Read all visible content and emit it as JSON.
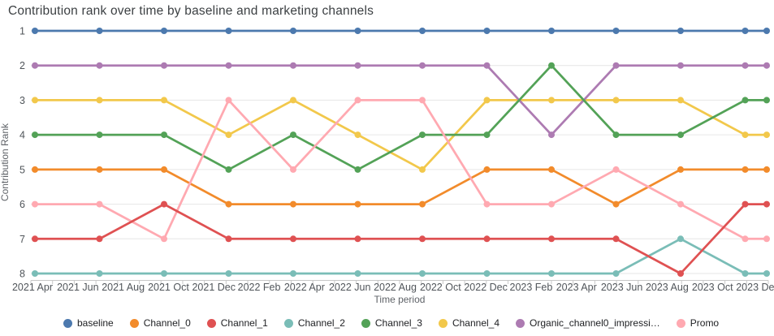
{
  "title": "Contribution rank over time by baseline and marketing channels",
  "axes": {
    "x_title": "Time period",
    "y_title": "Contribution Rank",
    "y_ticks": [
      "1",
      "2",
      "3",
      "4",
      "5",
      "6",
      "7",
      "8"
    ],
    "x_tick_labels": [
      "2021 Apr",
      "2021 Jun",
      "2021 Aug",
      "2021 Oct",
      "2021 Dec",
      "2022 Feb",
      "2022 Apr",
      "2022 Jun",
      "2022 Aug",
      "2022 Oct",
      "2022 Dec",
      "2023 Feb",
      "2023 Apr",
      "2023 Jun",
      "2023 Aug",
      "2023 Oct",
      "2023 Dec"
    ],
    "grid_color": "#e6e6e6",
    "axis_color": "#c8c8c8"
  },
  "chart_data": {
    "type": "line",
    "title": "Contribution rank over time by baseline and marketing channels",
    "xlabel": "Time period",
    "ylabel": "Contribution Rank",
    "y_range": [
      1,
      8
    ],
    "y_inverted": true,
    "grid": "horizontal",
    "legend_position": "bottom",
    "x_span_months": 34,
    "x_months": [
      0,
      3,
      6,
      9,
      12,
      15,
      18,
      21,
      24,
      27,
      30,
      33,
      34
    ],
    "x_tick_labels": [
      "2021 Apr",
      "2021 Jun",
      "2021 Aug",
      "2021 Oct",
      "2021 Dec",
      "2022 Feb",
      "2022 Apr",
      "2022 Jun",
      "2022 Aug",
      "2022 Oct",
      "2022 Dec",
      "2023 Feb",
      "2023 Apr",
      "2023 Jun",
      "2023 Aug",
      "2023 Oct",
      "2023 Dec"
    ],
    "series": [
      {
        "name": "baseline",
        "color": "#4C79AE",
        "values": [
          1,
          1,
          1,
          1,
          1,
          1,
          1,
          1,
          1,
          1,
          1,
          1,
          1
        ]
      },
      {
        "name": "Channel_0",
        "color": "#F28B2B",
        "values": [
          5,
          5,
          5,
          6,
          6,
          6,
          6,
          5,
          5,
          6,
          5,
          5,
          5
        ]
      },
      {
        "name": "Channel_1",
        "color": "#DF5152",
        "values": [
          7,
          7,
          6,
          7,
          7,
          7,
          7,
          7,
          7,
          7,
          8,
          6,
          6
        ]
      },
      {
        "name": "Channel_2",
        "color": "#7ABDB7",
        "values": [
          8,
          8,
          8,
          8,
          8,
          8,
          8,
          8,
          8,
          8,
          7,
          8,
          8
        ]
      },
      {
        "name": "Channel_3",
        "color": "#53A257",
        "values": [
          4,
          4,
          4,
          5,
          4,
          5,
          4,
          4,
          2,
          4,
          4,
          3,
          3
        ]
      },
      {
        "name": "Channel_4",
        "color": "#F2C84B",
        "values": [
          3,
          3,
          3,
          4,
          3,
          4,
          5,
          3,
          3,
          3,
          3,
          4,
          4
        ]
      },
      {
        "name": "Organic_channel0_impressi…",
        "color": "#AD7BB2",
        "values": [
          2,
          2,
          2,
          2,
          2,
          2,
          2,
          2,
          4,
          2,
          2,
          2,
          2
        ]
      },
      {
        "name": "Promo",
        "color": "#FFA9B1",
        "values": [
          6,
          6,
          7,
          3,
          5,
          3,
          3,
          6,
          6,
          5,
          6,
          7,
          7
        ]
      }
    ]
  },
  "legend": {
    "items": [
      "baseline",
      "Channel_0",
      "Channel_1",
      "Channel_2",
      "Channel_3",
      "Channel_4",
      "Organic_channel0_impressi…",
      "Promo"
    ]
  }
}
